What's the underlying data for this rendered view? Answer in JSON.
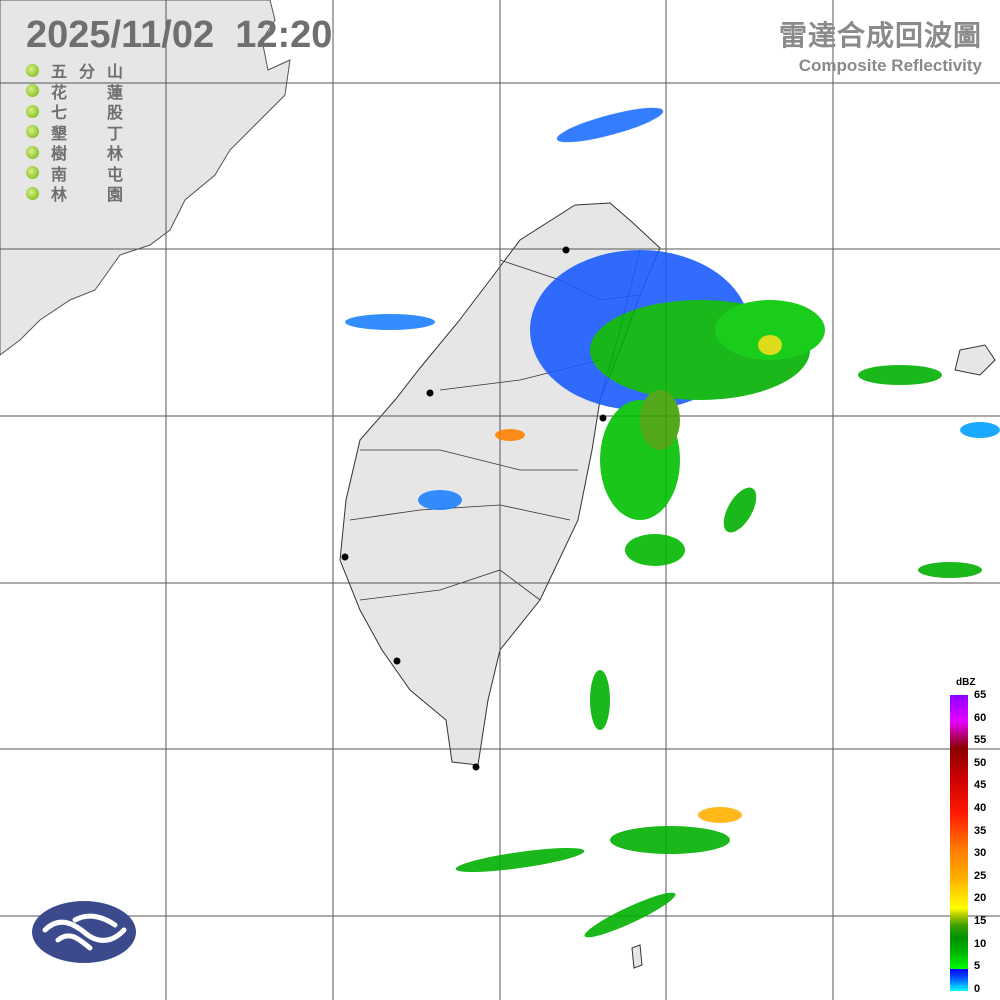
{
  "header": {
    "datetime": "2025/11/02  12:20"
  },
  "product": {
    "title_zh": "雷達合成回波圖",
    "title_en": "Composite Reflectivity"
  },
  "stations": [
    {
      "name": "五分山",
      "color": "#8cc42a"
    },
    {
      "name": "花蓮",
      "color": "#8cc42a"
    },
    {
      "name": "七股",
      "color": "#8cc42a"
    },
    {
      "name": "墾丁",
      "color": "#8cc42a"
    },
    {
      "name": "樹林",
      "color": "#8cc42a"
    },
    {
      "name": "南屯",
      "color": "#8cc42a"
    },
    {
      "name": "林園",
      "color": "#8cc42a"
    }
  ],
  "colorbar": {
    "unit": "dBZ",
    "ticks": [
      "65",
      "60",
      "55",
      "50",
      "45",
      "40",
      "35",
      "30",
      "25",
      "20",
      "15",
      "10",
      "5",
      "0"
    ],
    "range": [
      0,
      65
    ]
  },
  "colors": {
    "land": "#e6e6e6",
    "grid": "#555555",
    "text": "#6f6f6f",
    "logo": "#3a4a8c"
  },
  "logo": {
    "icon": "cwa-cloud-logo"
  }
}
